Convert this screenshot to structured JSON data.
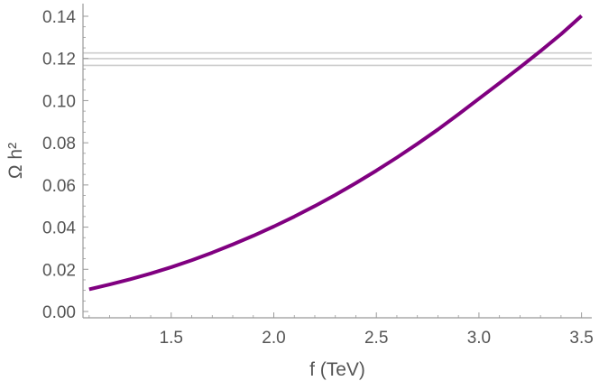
{
  "chart_data": {
    "type": "line",
    "xlabel": "f (TeV)",
    "ylabel": "Ω h²",
    "xlim": [
      1.07,
      3.55
    ],
    "ylim": [
      -0.003,
      0.146
    ],
    "xticks": [
      {
        "value": 1.5,
        "label": "1.5"
      },
      {
        "value": 2.0,
        "label": "2.0"
      },
      {
        "value": 2.5,
        "label": "2.5"
      },
      {
        "value": 3.0,
        "label": "3.0"
      },
      {
        "value": 3.5,
        "label": "3.5"
      }
    ],
    "yticks": [
      {
        "value": 0.0,
        "label": "0.00"
      },
      {
        "value": 0.02,
        "label": "0.02"
      },
      {
        "value": 0.04,
        "label": "0.04"
      },
      {
        "value": 0.06,
        "label": "0.06"
      },
      {
        "value": 0.08,
        "label": "0.08"
      },
      {
        "value": 0.1,
        "label": "0.10"
      },
      {
        "value": 0.12,
        "label": "0.12"
      },
      {
        "value": 0.14,
        "label": "0.14"
      }
    ],
    "reference_lines": [
      0.1167,
      0.1199,
      0.1226
    ],
    "series": [
      {
        "color": "#800080",
        "x": [
          1.1,
          1.2,
          1.3,
          1.4,
          1.5,
          1.6,
          1.7,
          1.8,
          1.9,
          2.0,
          2.1,
          2.2,
          2.3,
          2.4,
          2.5,
          2.6,
          2.7,
          2.8,
          2.9,
          3.0,
          3.1,
          3.2,
          3.3,
          3.4,
          3.5
        ],
        "y": [
          0.0105,
          0.0128,
          0.0153,
          0.018,
          0.021,
          0.0243,
          0.0279,
          0.0318,
          0.0359,
          0.0403,
          0.045,
          0.05,
          0.0553,
          0.0609,
          0.0668,
          0.073,
          0.0795,
          0.0863,
          0.0935,
          0.1009,
          0.1083,
          0.1158,
          0.1235,
          0.1315,
          0.1402
        ]
      }
    ],
    "grid": false,
    "colors": {
      "axis": "#999999",
      "text": "#555555",
      "reference": "#cccccc"
    }
  }
}
